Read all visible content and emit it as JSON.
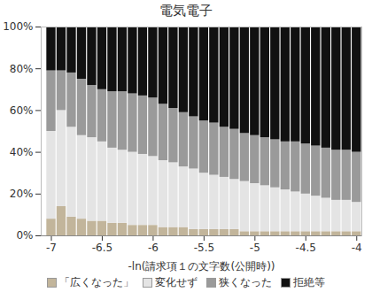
{
  "chart_data": {
    "type": "bar",
    "title": "電気電子",
    "x_label": "-ln(請求項１の文字数(公開時))",
    "stacked": true,
    "grid": false,
    "legend": "bottom",
    "x": [
      -7.0,
      -6.9,
      -6.8,
      -6.7,
      -6.6,
      -6.5,
      -6.4,
      -6.3,
      -6.2,
      -6.1,
      -6.0,
      -5.9,
      -5.8,
      -5.7,
      -5.6,
      -5.5,
      -5.4,
      -5.3,
      -5.2,
      -5.1,
      -5.0,
      -4.9,
      -4.8,
      -4.7,
      -4.6,
      -4.5,
      -4.4,
      -4.3,
      -4.2,
      -4.1,
      -4.0
    ],
    "series": [
      {
        "name": "「広くなった」",
        "color": "#c2b59b",
        "values": [
          8,
          14,
          9,
          8,
          7,
          7,
          6,
          6,
          5,
          5,
          5,
          4,
          4,
          4,
          3,
          3,
          3,
          3,
          3,
          2,
          2,
          2,
          2,
          2,
          2,
          2,
          2,
          2,
          2,
          2,
          2
        ]
      },
      {
        "name": "変化せず",
        "color": "#e4e4e4",
        "values": [
          42,
          46,
          43,
          40,
          40,
          38,
          36,
          35,
          35,
          34,
          33,
          32,
          31,
          29,
          29,
          27,
          26,
          25,
          24,
          24,
          23,
          22,
          21,
          20,
          19,
          18,
          17,
          16,
          15,
          15,
          14
        ]
      },
      {
        "name": "狭くなった",
        "color": "#9a9a9a",
        "values": [
          29,
          19,
          26,
          27,
          25,
          25,
          27,
          28,
          28,
          28,
          28,
          27,
          26,
          26,
          25,
          25,
          25,
          24,
          24,
          23,
          23,
          23,
          23,
          23,
          24,
          24,
          24,
          24,
          24,
          24,
          24
        ]
      },
      {
        "name": "拒絶等",
        "color": "#111111",
        "values": [
          21,
          21,
          22,
          25,
          28,
          30,
          31,
          31,
          32,
          33,
          34,
          37,
          39,
          41,
          43,
          45,
          46,
          48,
          49,
          51,
          52,
          53,
          54,
          55,
          55,
          56,
          57,
          58,
          59,
          59,
          60
        ]
      }
    ],
    "xlim": [
      -7.1,
      -3.95
    ],
    "xticks": [
      -7,
      -6.5,
      -6,
      -5.5,
      -5,
      -4.5,
      -4
    ],
    "ylim": [
      0,
      100
    ],
    "yticks": [
      {
        "value": 0,
        "label": "0%"
      },
      {
        "value": 20,
        "label": "20%"
      },
      {
        "value": 40,
        "label": "40%"
      },
      {
        "value": 60,
        "label": "60%"
      },
      {
        "value": 80,
        "label": "80%"
      },
      {
        "value": 100,
        "label": "100%"
      }
    ]
  }
}
